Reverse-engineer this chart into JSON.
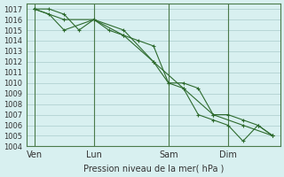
{
  "title": "",
  "xlabel": "Pression niveau de la mer( hPa )",
  "ylabel": "",
  "bg_color": "#d8f0f0",
  "grid_color": "#aacccc",
  "line_color": "#2d6a2d",
  "ylim": [
    1004,
    1017.5
  ],
  "yticks": [
    1004,
    1005,
    1006,
    1007,
    1008,
    1009,
    1010,
    1011,
    1012,
    1013,
    1014,
    1015,
    1016,
    1017
  ],
  "xtick_labels": [
    "Ven",
    "Lun",
    "Sam",
    "Dim"
  ],
  "xtick_positions": [
    0,
    4,
    9,
    13
  ],
  "vline_positions": [
    0,
    4,
    9,
    13
  ],
  "series1_x": [
    0,
    1,
    2,
    3,
    4,
    5,
    6,
    7,
    8,
    9,
    10,
    11,
    12,
    13,
    14,
    15,
    16
  ],
  "series1_y": [
    1017,
    1017,
    1016.5,
    1015,
    1016,
    1015,
    1014.5,
    1014,
    1013.5,
    1010,
    1010,
    1009.5,
    1007,
    1007,
    1006.5,
    1006,
    1005
  ],
  "series2_x": [
    0,
    1,
    2,
    4,
    6,
    8,
    9,
    10,
    11,
    12,
    13,
    14,
    15,
    16
  ],
  "series2_y": [
    1017,
    1016.5,
    1015,
    1016,
    1015,
    1012,
    1010,
    1009.5,
    1007,
    1006.5,
    1006,
    1004.5,
    1006,
    1005
  ],
  "series3_x": [
    0,
    2,
    4,
    6,
    8,
    10,
    12,
    14,
    16
  ],
  "series3_y": [
    1017,
    1016,
    1016,
    1014.5,
    1012,
    1009.5,
    1007,
    1006,
    1005
  ]
}
